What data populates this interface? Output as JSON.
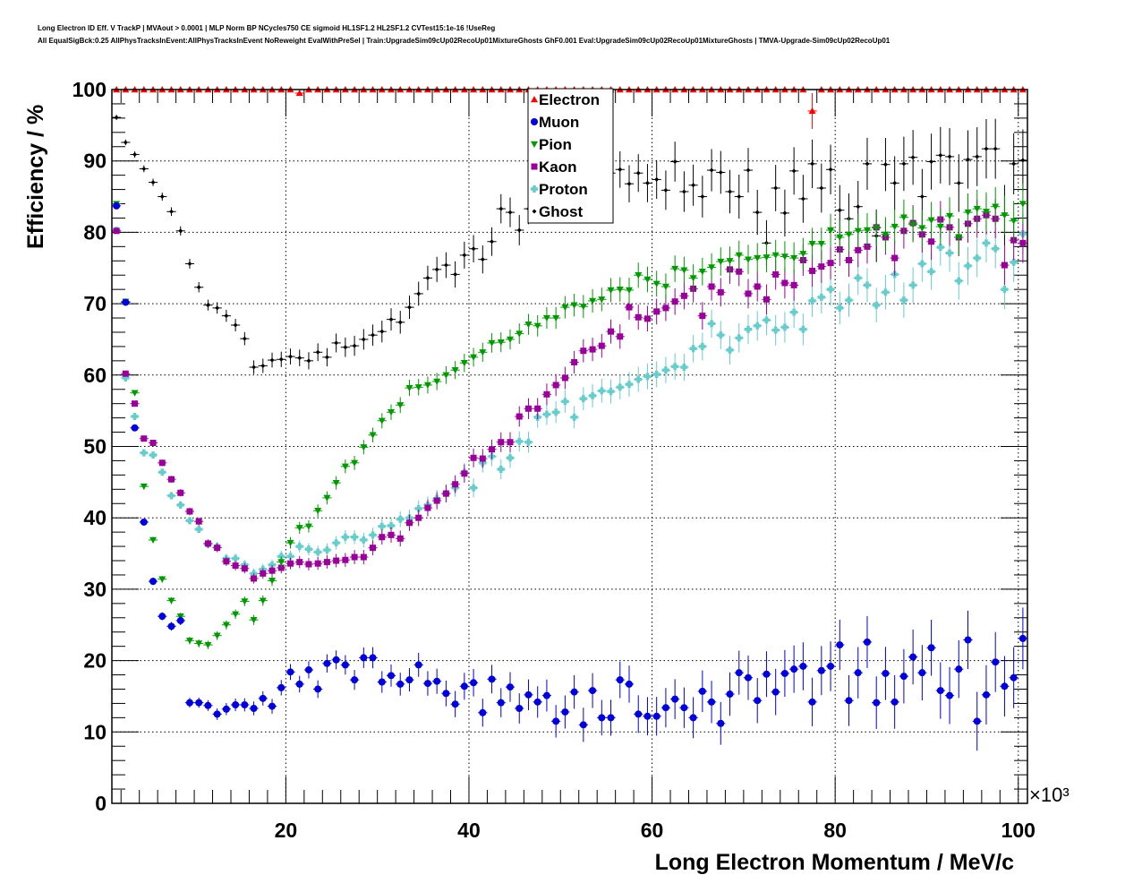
{
  "header": {
    "line1": "Long Electron ID Eff. V TrackP | MVAout > 0.0001 | MLP Norm BP NCycles750 CE sigmoid HL1SF1.2 HL2SF1.2 CVTest15:1e-16 !UseReg",
    "line2": "All EqualSigBck:0.25 AllPhysTracksInEvent:AllPhysTracksInEvent NoReweight EvalWithPreSel | Train:UpgradeSim09cUp02RecoUp01MixtureGhosts GhF0.001 Eval:UpgradeSim09cUp02RecoUp01MixtureGhosts | TMVA-Upgrade-Sim09cUp02RecoUp01"
  },
  "chart_data": {
    "type": "scatter",
    "title": "Long Electron ID Eff. V TrackP",
    "xlabel": "Long Electron Momentum / MeV/c",
    "ylabel": "Efficiency / %",
    "x_multiplier": "×10³",
    "xlim": [
      1,
      101
    ],
    "ylim": [
      0,
      100
    ],
    "x_ticks": [
      20,
      40,
      60,
      80,
      100
    ],
    "y_ticks": [
      0,
      10,
      20,
      30,
      40,
      50,
      60,
      70,
      80,
      90,
      100
    ],
    "grid": true,
    "legend_position": "top-center",
    "x_start": 1.5,
    "bin_width": 1,
    "series": [
      {
        "name": "Electron",
        "color": "#ff0000",
        "marker": "triangle-up",
        "values": [
          100,
          100,
          100,
          100,
          100,
          100,
          100,
          100,
          100,
          100,
          100,
          100,
          100,
          100,
          100,
          100,
          100,
          100,
          100,
          100,
          99.5,
          100,
          100,
          100,
          100,
          100,
          100,
          100,
          100,
          100,
          100,
          100,
          100,
          100,
          100,
          100,
          100,
          100,
          100,
          100,
          100,
          100,
          100,
          100,
          100,
          100,
          100,
          100,
          100,
          100,
          100,
          100,
          100,
          100,
          100,
          100,
          100,
          100,
          100,
          100,
          100,
          100,
          100,
          100,
          100,
          100,
          100,
          100,
          100,
          100,
          100,
          100,
          100,
          100,
          100,
          100,
          97,
          100,
          100,
          100,
          100,
          100,
          100,
          100,
          100,
          100,
          100,
          100,
          100,
          100,
          100,
          100,
          100,
          100,
          100,
          100,
          100,
          100,
          100,
          100
        ]
      },
      {
        "name": "Muon",
        "color": "#0000dd",
        "marker": "circle",
        "values": [
          83.7,
          70.2,
          52.6,
          39.4,
          31.1,
          26.2,
          24.8,
          25.6,
          14.1,
          14.1,
          13.7,
          12.5,
          13.2,
          13.8,
          13.8,
          13.3,
          14.7,
          13.6,
          16.2,
          18.4,
          16.7,
          18.7,
          16,
          19.6,
          20.1,
          19.4,
          17.3,
          20.4,
          20.4,
          17,
          17.9,
          16.7,
          17.3,
          19.4,
          16.8,
          17.1,
          15.4,
          13.9,
          16.4,
          16.9,
          12.7,
          17.4,
          14.1,
          16.3,
          13.3,
          15.2,
          14.2,
          15.1,
          11.5,
          12.8,
          15.6,
          11,
          15.8,
          12,
          12,
          17.3,
          16.7,
          12.5,
          12.2,
          12.2,
          13.4,
          14.6,
          13.4,
          12,
          15.7,
          14.2,
          11.2,
          15.3,
          18.3,
          17.6,
          14.4,
          18.1,
          15.6,
          18.2,
          18.8,
          19.2,
          14.2,
          18.6,
          19.2,
          22.2,
          14.4,
          18.3,
          22.6,
          14.1,
          18.2,
          14.2,
          17.8,
          20.5,
          18.3,
          21.8,
          15.8,
          15.1,
          18.8,
          22.9,
          11.5,
          15.2,
          19.8,
          16.4,
          17.6,
          23.1
        ]
      },
      {
        "name": "Pion",
        "color": "#009900",
        "marker": "triangle-down",
        "values": [
          84,
          70.3,
          57.5,
          44.4,
          36.9,
          31.4,
          28.4,
          26.2,
          22.8,
          22.4,
          22.2,
          23.5,
          25,
          26.5,
          28.3,
          25.7,
          28.4,
          31.2,
          33.8,
          36.5,
          38.6,
          38.8,
          41,
          42.8,
          44.9,
          47.2,
          47.7,
          49.9,
          51.6,
          53.6,
          54.8,
          55.8,
          58.2,
          58.3,
          58.6,
          59.1,
          60,
          60.7,
          61.7,
          62.5,
          63.2,
          64.5,
          64.6,
          65,
          65.8,
          67.1,
          66.9,
          68,
          68,
          69.5,
          69.8,
          69.6,
          70.4,
          70.6,
          71.9,
          72,
          71.9,
          74,
          73.4,
          72.8,
          72.4,
          74.9,
          74.7,
          73.6,
          74.5,
          75.1,
          75.9,
          76,
          76.8,
          76.2,
          76.4,
          76.5,
          76.8,
          76.6,
          76.4,
          77,
          78.4,
          78.4,
          80.3,
          79.3,
          79.7,
          80.2,
          80.3,
          80.6,
          79.7,
          80.8,
          82.1,
          81.1,
          80.6,
          81.7,
          80.8,
          82.3,
          79.3,
          82.8,
          83.3,
          82.9,
          83.6,
          82.4,
          81.6,
          84
        ]
      },
      {
        "name": "Kaon",
        "color": "#990099",
        "marker": "square",
        "values": [
          80.2,
          60.2,
          56,
          51.1,
          50.5,
          47.7,
          45.4,
          43.5,
          40.9,
          39.5,
          36.4,
          35.8,
          33.9,
          33.3,
          32.9,
          31.5,
          32.2,
          32.6,
          33,
          33.6,
          33.8,
          33.5,
          33.6,
          33.8,
          34,
          34.1,
          34.5,
          34.5,
          35.8,
          37.3,
          37.6,
          37.1,
          39.3,
          40,
          41.4,
          42.4,
          43.4,
          44.7,
          46.2,
          48.4,
          48.3,
          49.6,
          50.6,
          50.6,
          54.2,
          55.3,
          55.3,
          57.3,
          58.6,
          59.6,
          61.8,
          63.4,
          63.6,
          64.1,
          66.1,
          65.4,
          69.5,
          68.1,
          67.9,
          68.9,
          69.4,
          70.3,
          71.1,
          72.1,
          68.3,
          72.4,
          71.6,
          74.8,
          74.5,
          71.4,
          72.4,
          70.6,
          74.1,
          72.9,
          72.6,
          76.1,
          74.6,
          75.2,
          75.7,
          77.6,
          76.1,
          77.5,
          78,
          80.7,
          79.3,
          76.4,
          80.2,
          81.3,
          79.7,
          78.7,
          81.8,
          80.7,
          79.3,
          81.2,
          81.9,
          82.4,
          81.9,
          75.4,
          78.9,
          78.5
        ]
      },
      {
        "name": "Proton",
        "color": "#66cccc",
        "marker": "plus",
        "values": [
          80.3,
          59.6,
          54.2,
          49.1,
          48.8,
          46.4,
          43.1,
          41.8,
          39.6,
          38.4,
          36.3,
          36,
          34.3,
          34.3,
          33.4,
          32.2,
          32.8,
          33.4,
          34.6,
          34.6,
          36,
          35.6,
          35.2,
          35.5,
          36.5,
          37.3,
          37.3,
          36.9,
          37.6,
          38.8,
          38.9,
          39.8,
          40,
          41.3,
          41.8,
          42.7,
          43.4,
          44.2,
          46.4,
          44.2,
          47.7,
          48.6,
          46.8,
          48.4,
          50.7,
          50.6,
          54.1,
          54.5,
          54.8,
          56.3,
          54.1,
          56.7,
          57.1,
          57.8,
          57.7,
          58.3,
          58.7,
          59.4,
          59.8,
          60.1,
          60.7,
          61.2,
          61.1,
          63.7,
          64,
          67.2,
          65.6,
          63.5,
          65.2,
          66.4,
          66.9,
          67.7,
          66.3,
          66.7,
          68.8,
          66.4,
          70.4,
          70.9,
          72,
          69.4,
          70.5,
          73.6,
          72.6,
          69.8,
          71.6,
          74.1,
          70.5,
          72.6,
          75.6,
          74.5,
          77.9,
          77.1,
          73.2,
          75.3,
          76.4,
          78.5,
          77.7,
          72,
          75.8,
          79.8
        ]
      },
      {
        "name": "Ghost",
        "color": "#000000",
        "marker": "diamond",
        "values": [
          96.1,
          92.6,
          90.9,
          88.9,
          87,
          85,
          82.9,
          80.2,
          75.6,
          72.3,
          69.8,
          69.4,
          68.3,
          67,
          65.1,
          61.1,
          61.3,
          62.1,
          62.2,
          62.6,
          62.4,
          62,
          63.2,
          62.5,
          64.5,
          63.9,
          64.1,
          65,
          65.6,
          66.1,
          67.8,
          67.4,
          69.5,
          71.4,
          73.6,
          74.8,
          75.4,
          74.1,
          76.8,
          77.7,
          76.2,
          78.7,
          83.3,
          82.8,
          80.3,
          83.3,
          84.7,
          84.6,
          84.8,
          84.7,
          85.7,
          86.4,
          87.6,
          87.1,
          88.3,
          88.8,
          86.8,
          88.3,
          86.9,
          87.4,
          85.9,
          89.9,
          85.7,
          86.6,
          85,
          88.7,
          88.4,
          85.7,
          85,
          88.7,
          82.8,
          78.5,
          86.2,
          82.7,
          88.6,
          84.7,
          89.6,
          86.2,
          88.8,
          83.1,
          81.9,
          83.6,
          89.6,
          79.5,
          89.5,
          86.9,
          89.6,
          90.5,
          85,
          89.9,
          90.8,
          90.6,
          86.9,
          90.2,
          90.6,
          91.7,
          91.7,
          82.4,
          89.6,
          90.1
        ]
      }
    ]
  }
}
